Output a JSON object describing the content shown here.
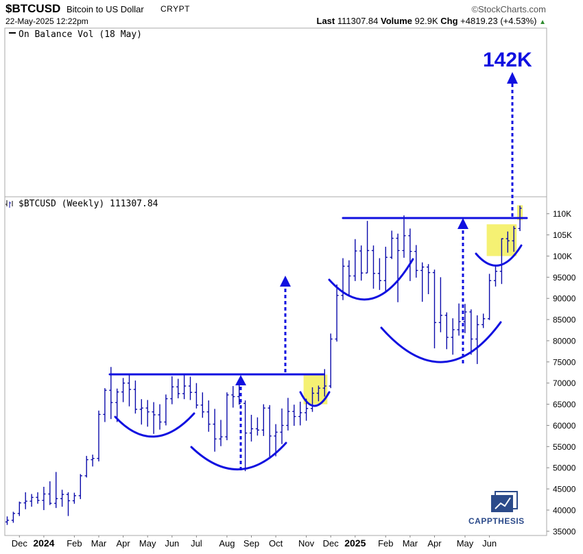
{
  "header": {
    "ticker": "$BTCUSD",
    "name": "Bitcoin to US Dollar",
    "exchange": "CRYPT",
    "brand": "©StockCharts.com",
    "date": "22-May-2025 12:22pm",
    "last_label": "Last",
    "last_value": "111307.84",
    "volume_label": "Volume",
    "volume_value": "92.9K",
    "chg_label": "Chg",
    "chg_value": "+4819.23 (+4.53%)",
    "chg_arrow": "▲"
  },
  "obv_panel": {
    "label": "On Balance Vol (18 May)"
  },
  "price_panel": {
    "label": "$BTCUSD (Weekly) 111307.84"
  },
  "annotations": {
    "target_label": "142K",
    "target_value": 142000,
    "neckline_1": 72000,
    "neckline_2": 108800,
    "logo_text": "CAPPTHESIS"
  },
  "colors": {
    "annotation": "#1010e0",
    "bars": "#0a0aaa",
    "highlight": "#f3ee5a",
    "grid": "#e0e0e0"
  },
  "chart_data": {
    "type": "ohlc",
    "title": "$BTCUSD (Weekly) 111307.84",
    "xlabel": "",
    "ylabel": "",
    "ylim": [
      34000,
      114000
    ],
    "y_ticks": [
      35000,
      40000,
      45000,
      50000,
      55000,
      60000,
      65000,
      70000,
      75000,
      80000,
      85000,
      90000,
      95000,
      100000,
      105000,
      110000
    ],
    "y_tick_labels": [
      "35000",
      "40000",
      "45000",
      "50000",
      "55000",
      "60000",
      "65000",
      "70000",
      "75000",
      "80000",
      "85000",
      "90000",
      "95000",
      "100K",
      "105K",
      "110K"
    ],
    "x_tick_labels": [
      {
        "week": 2,
        "label": "Dec"
      },
      {
        "week": 6,
        "label": "2024"
      },
      {
        "week": 11,
        "label": "Feb"
      },
      {
        "week": 15,
        "label": "Mar"
      },
      {
        "week": 19,
        "label": "Apr"
      },
      {
        "week": 23,
        "label": "May"
      },
      {
        "week": 27,
        "label": "Jun"
      },
      {
        "week": 31,
        "label": "Jul"
      },
      {
        "week": 36,
        "label": "Aug"
      },
      {
        "week": 40,
        "label": "Sep"
      },
      {
        "week": 44,
        "label": "Oct"
      },
      {
        "week": 49,
        "label": "Nov"
      },
      {
        "week": 53,
        "label": "Dec"
      },
      {
        "week": 57,
        "label": "2025"
      },
      {
        "week": 62,
        "label": "Feb"
      },
      {
        "week": 66,
        "label": "Mar"
      },
      {
        "week": 70,
        "label": "Apr"
      },
      {
        "week": 75,
        "label": "May"
      },
      {
        "week": 79,
        "label": "Jun"
      }
    ],
    "grid": false,
    "bars": [
      [
        37200,
        38500,
        36500,
        37600
      ],
      [
        37600,
        39600,
        37000,
        39200
      ],
      [
        39200,
        42000,
        38600,
        41700
      ],
      [
        41700,
        44200,
        40200,
        42100
      ],
      [
        42100,
        43800,
        40800,
        43000
      ],
      [
        43000,
        44200,
        41500,
        42300
      ],
      [
        42300,
        45500,
        40000,
        43800
      ],
      [
        43800,
        46800,
        41200,
        41600
      ],
      [
        41600,
        49000,
        40500,
        42700
      ],
      [
        42700,
        44800,
        40800,
        43700
      ],
      [
        43700,
        44200,
        38600,
        42200
      ],
      [
        42200,
        44100,
        41500,
        43400
      ],
      [
        43400,
        48500,
        42600,
        48100
      ],
      [
        48100,
        52800,
        47700,
        51900
      ],
      [
        51900,
        53100,
        50300,
        52200
      ],
      [
        52200,
        63500,
        51500,
        62600
      ],
      [
        62600,
        68800,
        60800,
        68300
      ],
      [
        68300,
        73800,
        61500,
        65400
      ],
      [
        65400,
        68700,
        60800,
        67900
      ],
      [
        67900,
        71200,
        65500,
        70000
      ],
      [
        70000,
        72300,
        64500,
        68500
      ],
      [
        68500,
        70600,
        62800,
        63800
      ],
      [
        63800,
        66200,
        60200,
        64100
      ],
      [
        64100,
        66000,
        59700,
        63200
      ],
      [
        63200,
        65500,
        58000,
        62500
      ],
      [
        62500,
        65000,
        59000,
        60800
      ],
      [
        60800,
        67300,
        60000,
        66300
      ],
      [
        66300,
        71600,
        65000,
        69100
      ],
      [
        69100,
        71000,
        66400,
        67500
      ],
      [
        67500,
        71900,
        66200,
        69300
      ],
      [
        69300,
        71500,
        66000,
        67800
      ],
      [
        67800,
        70000,
        64000,
        64800
      ],
      [
        64800,
        67800,
        61800,
        63200
      ],
      [
        63200,
        65900,
        58500,
        60300
      ],
      [
        60300,
        63900,
        53800,
        56800
      ],
      [
        56800,
        61300,
        55100,
        57300
      ],
      [
        57300,
        67800,
        56500,
        67200
      ],
      [
        67200,
        69300,
        64200,
        66800
      ],
      [
        66800,
        70000,
        64900,
        65200
      ],
      [
        65200,
        65900,
        49200,
        58200
      ],
      [
        58200,
        62500,
        56200,
        59200
      ],
      [
        59200,
        61900,
        57600,
        58900
      ],
      [
        58900,
        65000,
        57500,
        64100
      ],
      [
        64100,
        64800,
        52600,
        57500
      ],
      [
        57500,
        60300,
        52700,
        58400
      ],
      [
        58400,
        64000,
        55600,
        60000
      ],
      [
        60000,
        66500,
        58800,
        63300
      ],
      [
        63300,
        64900,
        59900,
        62100
      ],
      [
        62100,
        65600,
        60000,
        63000
      ],
      [
        63000,
        66300,
        61100,
        64000
      ],
      [
        64000,
        69000,
        63200,
        67600
      ],
      [
        67600,
        69400,
        65700,
        68800
      ],
      [
        68800,
        73300,
        66800,
        69300
      ],
      [
        69300,
        81700,
        68800,
        80400
      ],
      [
        80400,
        93300,
        79800,
        90700
      ],
      [
        90700,
        99500,
        89600,
        97600
      ],
      [
        97600,
        99000,
        90800,
        95300
      ],
      [
        95300,
        104000,
        94100,
        101200
      ],
      [
        101200,
        102500,
        94200,
        96000
      ],
      [
        96000,
        108300,
        96000,
        101300
      ],
      [
        101300,
        102500,
        92300,
        95900
      ],
      [
        95900,
        99500,
        92000,
        94200
      ],
      [
        94200,
        102200,
        91300,
        99700
      ],
      [
        99700,
        106000,
        99300,
        104200
      ],
      [
        104200,
        105300,
        89100,
        101300
      ],
      [
        101300,
        109600,
        99600,
        104800
      ],
      [
        104800,
        106500,
        94100,
        101100
      ],
      [
        101100,
        102600,
        94900,
        96600
      ],
      [
        96600,
        98500,
        89200,
        97400
      ],
      [
        97400,
        98100,
        91000,
        96100
      ],
      [
        96100,
        96800,
        78200,
        84300
      ],
      [
        84300,
        95000,
        82000,
        86000
      ],
      [
        86000,
        86700,
        78000,
        80800
      ],
      [
        80800,
        85300,
        76700,
        82600
      ],
      [
        82600,
        88800,
        81200,
        84500
      ],
      [
        84500,
        88700,
        81800,
        86800
      ],
      [
        86800,
        87400,
        76700,
        80400
      ],
      [
        80400,
        86000,
        74500,
        83800
      ],
      [
        83800,
        86400,
        83000,
        85200
      ],
      [
        85200,
        95800,
        84900,
        94200
      ],
      [
        94200,
        97900,
        92800,
        96400
      ],
      [
        96400,
        104200,
        93400,
        104100
      ],
      [
        104100,
        105800,
        100800,
        103600
      ],
      [
        103600,
        107100,
        101000,
        106500
      ],
      [
        106500,
        111900,
        105900,
        111300
      ]
    ],
    "highlights": [
      {
        "week_from": 49,
        "week_to": 52,
        "low": 65000,
        "high": 72000
      },
      {
        "week_from": 79,
        "week_to": 83,
        "low": 100000,
        "high": 107500
      },
      {
        "week_from": 84,
        "week_to": 84,
        "low": 108500,
        "high": 112000
      }
    ]
  }
}
